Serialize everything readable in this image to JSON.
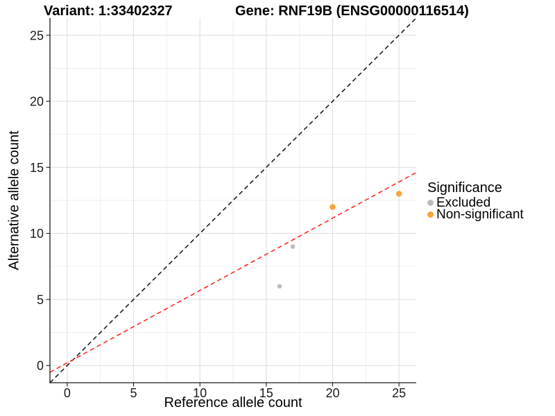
{
  "chart_data": {
    "type": "scatter",
    "title_left": "Variant: 1:33402327",
    "title_right": "Gene: RNF19B (ENSG00000116514)",
    "xlabel": "Reference allele count",
    "ylabel": "Alternative allele count",
    "xlim": [
      -1.3,
      26.3
    ],
    "ylim": [
      -1.3,
      26.3
    ],
    "xticks": [
      0,
      5,
      10,
      15,
      20,
      25
    ],
    "yticks": [
      0,
      5,
      10,
      15,
      20,
      25
    ],
    "minor_xticks": [
      2.5,
      7.5,
      12.5,
      17.5,
      22.5
    ],
    "minor_yticks": [
      2.5,
      7.5,
      12.5,
      17.5,
      22.5
    ],
    "grid": "major-and-minor",
    "legend": {
      "title": "Significance",
      "position": "right"
    },
    "series": [
      {
        "name": "Excluded",
        "color": "#BDBDBD",
        "marker_radius": 3.3,
        "points": [
          [
            16,
            6
          ],
          [
            17,
            9
          ]
        ]
      },
      {
        "name": "Non-significant",
        "color": "#FAA43A",
        "marker_radius": 4.2,
        "points": [
          [
            20,
            12
          ],
          [
            25,
            13
          ]
        ]
      }
    ],
    "reference_lines": [
      {
        "name": "identity-line",
        "color": "#1A1A1A",
        "style": "dashed",
        "from": [
          -1.3,
          -1.3
        ],
        "to": [
          26.3,
          26.3
        ]
      },
      {
        "name": "fit-line",
        "color": "#FF271E",
        "style": "dashed",
        "from": [
          -1.3,
          -0.51
        ],
        "to": [
          26.3,
          14.61
        ]
      }
    ]
  }
}
